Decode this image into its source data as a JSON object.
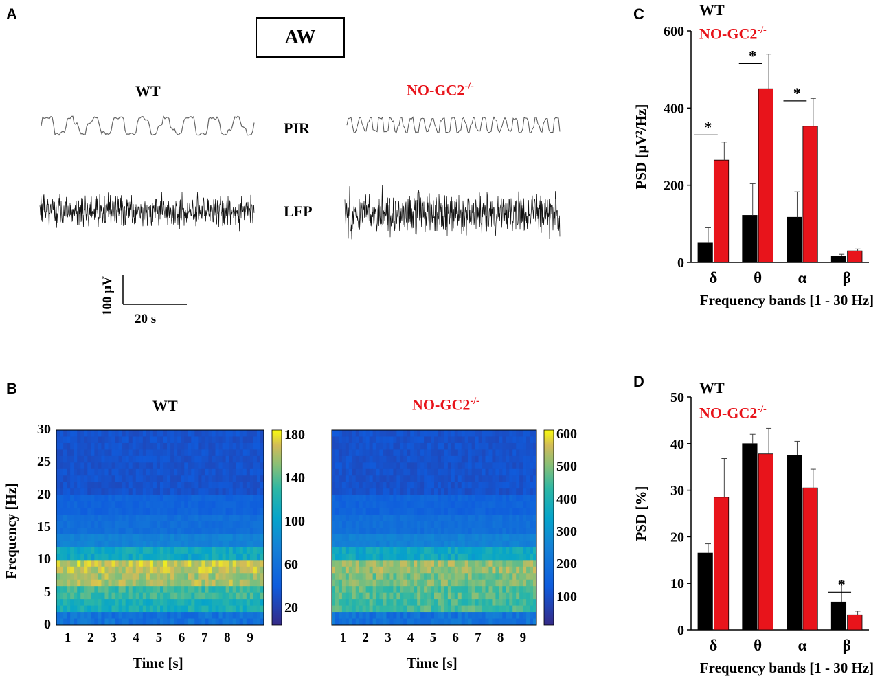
{
  "panels": {
    "a": "A",
    "b": "B",
    "c": "C",
    "d": "D"
  },
  "panel_a": {
    "state_box": "AW",
    "wt_label": "WT",
    "ko_label_base": "NO-GC2",
    "ko_label_sup": "-/-",
    "pir_label": "PIR",
    "lfp_label": "LFP",
    "scale_v": "100 µV",
    "scale_t": "20 s"
  },
  "panel_b": {
    "wt_title": "WT",
    "ko_title_base": "NO-GC2",
    "ko_title_sup": "-/-",
    "ylabel": "Frequency [Hz]",
    "xlabel": "Time [s]",
    "yticks": [
      "0",
      "5",
      "10",
      "15",
      "20",
      "25",
      "30"
    ],
    "xticks": [
      "1",
      "2",
      "3",
      "4",
      "5",
      "6",
      "7",
      "8",
      "9"
    ],
    "wt_colorbar": [
      "20",
      "60",
      "100",
      "140",
      "180"
    ],
    "ko_colorbar": [
      "100",
      "200",
      "300",
      "400",
      "500",
      "600"
    ]
  },
  "legend": {
    "wt": "WT",
    "ko_base": "NO-GC2",
    "ko_sup": "-/-"
  },
  "colors": {
    "wt": "#000000",
    "ko": "#e8141b"
  },
  "chart_data": [
    {
      "id": "C",
      "type": "bar",
      "ylabel": "PSD [µV²/Hz]",
      "xlabel": "Frequency bands  [1 - 30 Hz]",
      "categories": [
        "δ",
        "θ",
        "α",
        "β"
      ],
      "ylim": [
        0,
        600
      ],
      "yticks": [
        "0",
        "200",
        "400",
        "600"
      ],
      "series": [
        {
          "name": "WT",
          "values": [
            50,
            122,
            117,
            17
          ],
          "errors": [
            40,
            82,
            66,
            4
          ]
        },
        {
          "name": "NO-GC2-/-",
          "values": [
            265,
            450,
            353,
            30
          ],
          "errors": [
            47,
            90,
            72,
            5
          ]
        }
      ],
      "significance": [
        "*",
        "*",
        "*",
        ""
      ]
    },
    {
      "id": "D",
      "type": "bar",
      "ylabel": "PSD [%]",
      "xlabel": "Frequency bands  [1 - 30 Hz]",
      "categories": [
        "δ",
        "θ",
        "α",
        "β"
      ],
      "ylim": [
        0,
        50
      ],
      "yticks": [
        "0",
        "10",
        "20",
        "30",
        "40",
        "50"
      ],
      "series": [
        {
          "name": "WT",
          "values": [
            16.5,
            40,
            37.5,
            6
          ],
          "errors": [
            2,
            2,
            3,
            4.5
          ]
        },
        {
          "name": "NO-GC2-/-",
          "values": [
            28.5,
            37.8,
            30.5,
            3.2
          ],
          "errors": [
            8.3,
            5.5,
            4,
            0.8
          ]
        }
      ],
      "significance": [
        "",
        "",
        "",
        "*"
      ]
    }
  ]
}
